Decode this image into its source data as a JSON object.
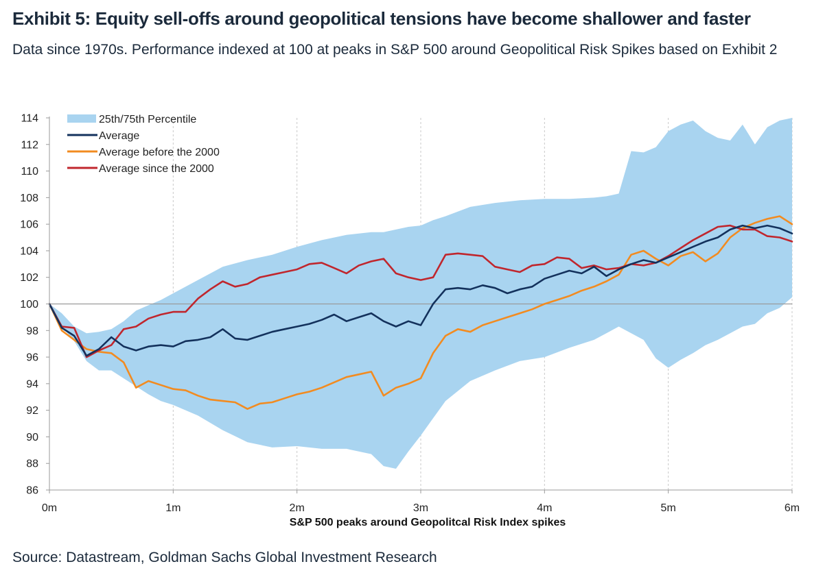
{
  "header": {
    "title": "Exhibit 5: Equity sell-offs around geopolitical tensions have become shallower and faster",
    "subtitle": "Data since 1970s. Performance indexed at 100 at peaks in S&P 500 around Geopolitical Risk Spikes based on Exhibit 2"
  },
  "footer": {
    "source": "Source: Datastream, Goldman Sachs Global Investment Research"
  },
  "chart_data": {
    "type": "line",
    "xlabel": "S&P 500 peaks around Geopolitcal Risk Index spikes",
    "ylabel": "",
    "x_tick_labels": [
      "0m",
      "1m",
      "2m",
      "3m",
      "4m",
      "5m",
      "6m"
    ],
    "xlim": [
      0,
      6
    ],
    "ylim": [
      86,
      114
    ],
    "y_ticks": [
      86,
      88,
      90,
      92,
      94,
      96,
      98,
      100,
      102,
      104,
      106,
      108,
      110,
      112,
      114
    ],
    "reference_line": 100,
    "grid": "vertical dashed at month ticks",
    "legend_position": "top-left",
    "colors": {
      "band": "#a9d4f0",
      "average": "#13315c",
      "before_2000": "#f28b20",
      "since_2000": "#c0262d",
      "reference": "#9a9a9a"
    },
    "band": {
      "name": "25th/75th Percentile",
      "x": [
        0,
        0.1,
        0.2,
        0.3,
        0.4,
        0.5,
        0.6,
        0.7,
        0.8,
        0.9,
        1.0,
        1.2,
        1.4,
        1.6,
        1.8,
        2.0,
        2.2,
        2.4,
        2.6,
        2.7,
        2.8,
        2.9,
        3.0,
        3.1,
        3.2,
        3.4,
        3.6,
        3.8,
        4.0,
        4.2,
        4.4,
        4.5,
        4.6,
        4.7,
        4.8,
        4.9,
        5.0,
        5.1,
        5.2,
        5.3,
        5.4,
        5.5,
        5.6,
        5.7,
        5.8,
        5.9,
        6.0
      ],
      "upper": [
        100,
        99.3,
        98.3,
        97.8,
        97.9,
        98.1,
        98.7,
        99.5,
        99.9,
        100.3,
        100.8,
        101.8,
        102.8,
        103.3,
        103.7,
        104.3,
        104.8,
        105.2,
        105.4,
        105.4,
        105.6,
        105.8,
        105.9,
        106.3,
        106.6,
        107.3,
        107.6,
        107.8,
        107.9,
        107.9,
        108.0,
        108.1,
        108.3,
        111.5,
        111.4,
        111.8,
        113.0,
        113.5,
        113.8,
        113.0,
        112.5,
        112.3,
        113.5,
        112.0,
        113.3,
        113.8,
        114.0
      ],
      "lower": [
        100,
        98.3,
        97.2,
        95.7,
        95.0,
        95.0,
        94.4,
        93.8,
        93.2,
        92.7,
        92.4,
        91.6,
        90.5,
        89.6,
        89.2,
        89.3,
        89.1,
        89.1,
        88.7,
        87.8,
        87.6,
        88.9,
        90.1,
        91.4,
        92.7,
        94.2,
        95.0,
        95.7,
        96.0,
        96.7,
        97.3,
        97.8,
        98.3,
        97.8,
        97.3,
        95.9,
        95.2,
        95.8,
        96.3,
        96.9,
        97.3,
        97.8,
        98.3,
        98.5,
        99.3,
        99.7,
        100.5
      ]
    },
    "series": [
      {
        "name": "Average",
        "x": [
          0,
          0.1,
          0.2,
          0.3,
          0.4,
          0.5,
          0.6,
          0.7,
          0.8,
          0.9,
          1.0,
          1.1,
          1.2,
          1.3,
          1.4,
          1.5,
          1.6,
          1.7,
          1.8,
          1.9,
          2.0,
          2.1,
          2.2,
          2.3,
          2.4,
          2.5,
          2.6,
          2.7,
          2.8,
          2.9,
          3.0,
          3.1,
          3.2,
          3.3,
          3.4,
          3.5,
          3.6,
          3.7,
          3.8,
          3.9,
          4.0,
          4.1,
          4.2,
          4.3,
          4.4,
          4.5,
          4.6,
          4.7,
          4.8,
          4.9,
          5.0,
          5.1,
          5.2,
          5.3,
          5.4,
          5.5,
          5.6,
          5.7,
          5.8,
          5.9,
          6.0
        ],
        "values": [
          100,
          98.2,
          97.6,
          96.1,
          96.6,
          97.5,
          96.8,
          96.5,
          96.8,
          96.9,
          96.8,
          97.2,
          97.3,
          97.5,
          98.1,
          97.4,
          97.3,
          97.6,
          97.9,
          98.1,
          98.3,
          98.5,
          98.8,
          99.2,
          98.7,
          99.0,
          99.3,
          98.7,
          98.3,
          98.7,
          98.4,
          100.0,
          101.1,
          101.2,
          101.1,
          101.4,
          101.2,
          100.8,
          101.1,
          101.3,
          101.9,
          102.2,
          102.5,
          102.3,
          102.8,
          102.1,
          102.6,
          103.0,
          103.3,
          103.1,
          103.5,
          103.9,
          104.3,
          104.7,
          105.0,
          105.6,
          105.9,
          105.7,
          105.9,
          105.7,
          105.3
        ]
      },
      {
        "name": "Average before the 2000",
        "x": [
          0,
          0.1,
          0.2,
          0.3,
          0.4,
          0.5,
          0.6,
          0.7,
          0.8,
          0.9,
          1.0,
          1.1,
          1.2,
          1.3,
          1.4,
          1.5,
          1.6,
          1.7,
          1.8,
          1.9,
          2.0,
          2.1,
          2.2,
          2.3,
          2.4,
          2.5,
          2.6,
          2.7,
          2.8,
          2.9,
          3.0,
          3.1,
          3.2,
          3.3,
          3.4,
          3.5,
          3.6,
          3.7,
          3.8,
          3.9,
          4.0,
          4.1,
          4.2,
          4.3,
          4.4,
          4.5,
          4.6,
          4.7,
          4.8,
          4.9,
          5.0,
          5.1,
          5.2,
          5.3,
          5.4,
          5.5,
          5.6,
          5.7,
          5.8,
          5.9,
          6.0
        ],
        "values": [
          100,
          98.0,
          97.3,
          96.6,
          96.4,
          96.3,
          95.6,
          93.7,
          94.2,
          93.9,
          93.6,
          93.5,
          93.1,
          92.8,
          92.7,
          92.6,
          92.1,
          92.5,
          92.6,
          92.9,
          93.2,
          93.4,
          93.7,
          94.1,
          94.5,
          94.7,
          94.9,
          93.1,
          93.7,
          94.0,
          94.4,
          96.3,
          97.6,
          98.1,
          97.9,
          98.4,
          98.7,
          99.0,
          99.3,
          99.6,
          100.0,
          100.3,
          100.6,
          101.0,
          101.3,
          101.7,
          102.2,
          103.7,
          104.0,
          103.4,
          102.9,
          103.6,
          103.9,
          103.2,
          103.8,
          105.0,
          105.7,
          106.1,
          106.4,
          106.6,
          106.0
        ]
      },
      {
        "name": "Average since the 2000",
        "x": [
          0,
          0.1,
          0.2,
          0.3,
          0.4,
          0.5,
          0.6,
          0.7,
          0.8,
          0.9,
          1.0,
          1.1,
          1.2,
          1.3,
          1.4,
          1.5,
          1.6,
          1.7,
          1.8,
          1.9,
          2.0,
          2.1,
          2.2,
          2.3,
          2.4,
          2.5,
          2.6,
          2.7,
          2.8,
          2.9,
          3.0,
          3.1,
          3.2,
          3.3,
          3.4,
          3.5,
          3.6,
          3.7,
          3.8,
          3.9,
          4.0,
          4.1,
          4.2,
          4.3,
          4.4,
          4.5,
          4.6,
          4.7,
          4.8,
          4.9,
          5.0,
          5.1,
          5.2,
          5.3,
          5.4,
          5.5,
          5.6,
          5.7,
          5.8,
          5.9,
          6.0
        ],
        "values": [
          100,
          98.3,
          98.2,
          96.0,
          96.5,
          96.9,
          98.1,
          98.3,
          98.9,
          99.2,
          99.4,
          99.4,
          100.4,
          101.1,
          101.7,
          101.3,
          101.5,
          102.0,
          102.2,
          102.4,
          102.6,
          103.0,
          103.1,
          102.7,
          102.3,
          102.9,
          103.2,
          103.4,
          102.3,
          102.0,
          101.8,
          102.0,
          103.7,
          103.8,
          103.7,
          103.6,
          102.8,
          102.6,
          102.4,
          102.9,
          103.0,
          103.5,
          103.4,
          102.7,
          102.9,
          102.6,
          102.7,
          103.0,
          102.9,
          103.1,
          103.6,
          104.2,
          104.8,
          105.3,
          105.8,
          105.9,
          105.6,
          105.6,
          105.1,
          105.0,
          104.7
        ]
      }
    ]
  }
}
